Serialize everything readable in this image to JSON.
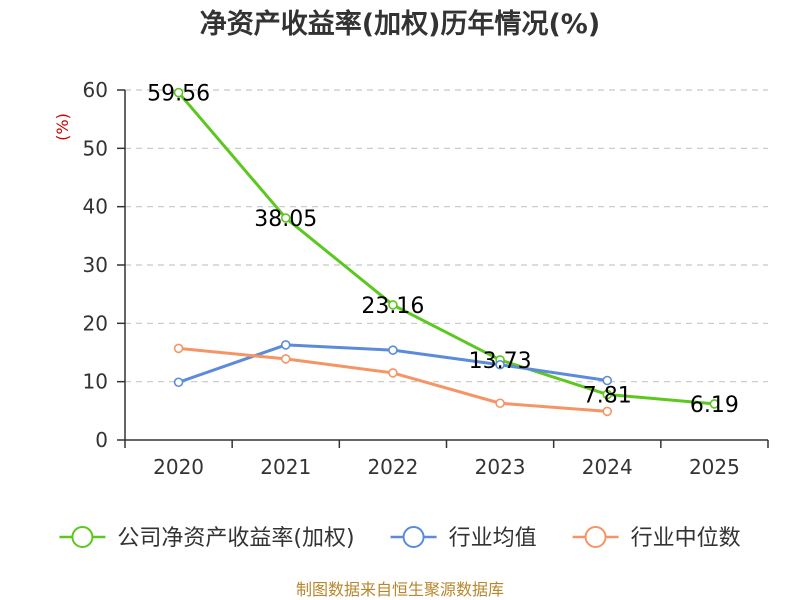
{
  "chart_data": {
    "type": "line",
    "title": "净资产收益率(加权)历年情况(%)",
    "ylabel": "(%)",
    "xlabel": "",
    "categories": [
      "2020",
      "2021",
      "2022",
      "2023",
      "2024",
      "2025"
    ],
    "ylim": [
      0,
      60
    ],
    "yticks": [
      0,
      10,
      20,
      30,
      40,
      50,
      60
    ],
    "grid": true,
    "legend_position": "bottom",
    "series": [
      {
        "name": "公司净资产收益率(加权)",
        "color": "#5cc81f",
        "values": [
          59.56,
          38.05,
          23.16,
          13.73,
          7.81,
          6.19
        ],
        "labels": [
          "59.56",
          "38.05",
          "23.16",
          "13.73",
          "7.81",
          "6.19"
        ]
      },
      {
        "name": "行业均值",
        "color": "#5b8bd9",
        "values": [
          9.9,
          16.3,
          15.4,
          12.9,
          10.2,
          null
        ]
      },
      {
        "name": "行业中位数",
        "color": "#f59566",
        "values": [
          15.7,
          13.9,
          11.5,
          6.3,
          4.9,
          null
        ]
      }
    ]
  },
  "source": "制图数据来自恒生聚源数据库"
}
